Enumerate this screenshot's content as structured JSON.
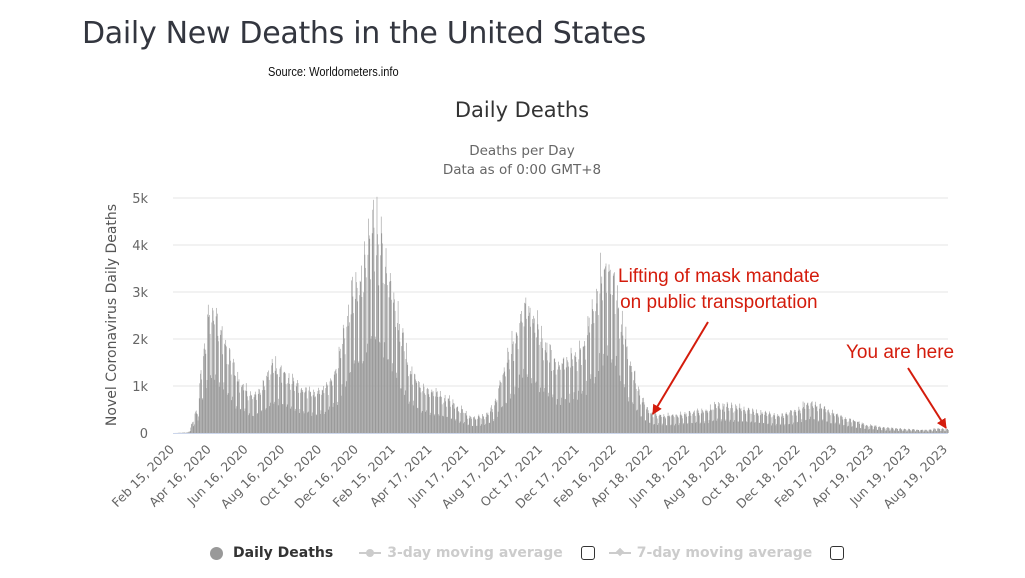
{
  "page": {
    "title": "Daily New Deaths in the United States",
    "source": "Source: Worldometers.info"
  },
  "chart_data": {
    "type": "bar",
    "title": "Daily Deaths",
    "subtitle_lines": [
      "Deaths per Day",
      "Data as of 0:00 GMT+8"
    ],
    "xlabel": "",
    "ylabel": "Novel Coronavirus Daily Deaths",
    "ylim": [
      0,
      5000
    ],
    "y_ticks": [
      0,
      1000,
      2000,
      3000,
      4000,
      5000
    ],
    "y_tick_labels": [
      "0",
      "1k",
      "2k",
      "3k",
      "4k",
      "5k"
    ],
    "grid": true,
    "x_range": [
      "2020-02-15",
      "2023-08-24"
    ],
    "x_tick_labels": [
      "Feb 15, 2020",
      "Apr 16, 2020",
      "Jun 16, 2020",
      "Aug 16, 2020",
      "Oct 16, 2020",
      "Dec 16, 2020",
      "Feb 15, 2021",
      "Apr 17, 2021",
      "Jun 17, 2021",
      "Aug 17, 2021",
      "Oct 17, 2021",
      "Dec 17, 2021",
      "Feb 16, 2022",
      "Apr 18, 2022",
      "Jun 18, 2022",
      "Aug 18, 2022",
      "Oct 18, 2022",
      "Dec 18, 2022",
      "Feb 17, 2023",
      "Apr 19, 2023",
      "Jun 19, 2023",
      "Aug 19, 2023"
    ],
    "series": [
      {
        "name": "Daily Deaths",
        "color": "#999999",
        "granularity": "daily (values approximated from envelope, with weekly reporting cycle)",
        "envelope_points": [
          {
            "date": "2020-02-15",
            "deaths": 0
          },
          {
            "date": "2020-03-10",
            "deaths": 10
          },
          {
            "date": "2020-03-25",
            "deaths": 400
          },
          {
            "date": "2020-04-05",
            "deaths": 1500
          },
          {
            "date": "2020-04-15",
            "deaths": 2400
          },
          {
            "date": "2020-04-22",
            "deaths": 2300
          },
          {
            "date": "2020-05-05",
            "deaths": 1900
          },
          {
            "date": "2020-05-20",
            "deaths": 1400
          },
          {
            "date": "2020-06-05",
            "deaths": 950
          },
          {
            "date": "2020-06-25",
            "deaths": 700
          },
          {
            "date": "2020-07-10",
            "deaths": 850
          },
          {
            "date": "2020-07-28",
            "deaths": 1300
          },
          {
            "date": "2020-08-10",
            "deaths": 1200
          },
          {
            "date": "2020-08-25",
            "deaths": 1050
          },
          {
            "date": "2020-09-15",
            "deaths": 850
          },
          {
            "date": "2020-10-05",
            "deaths": 750
          },
          {
            "date": "2020-10-25",
            "deaths": 850
          },
          {
            "date": "2020-11-10",
            "deaths": 1200
          },
          {
            "date": "2020-11-25",
            "deaths": 1900
          },
          {
            "date": "2020-12-10",
            "deaths": 2700
          },
          {
            "date": "2020-12-28",
            "deaths": 3100
          },
          {
            "date": "2021-01-13",
            "deaths": 4000
          },
          {
            "date": "2021-01-25",
            "deaths": 3500
          },
          {
            "date": "2021-02-10",
            "deaths": 2900
          },
          {
            "date": "2021-02-28",
            "deaths": 1900
          },
          {
            "date": "2021-03-15",
            "deaths": 1200
          },
          {
            "date": "2021-04-05",
            "deaths": 850
          },
          {
            "date": "2021-04-25",
            "deaths": 750
          },
          {
            "date": "2021-05-15",
            "deaths": 650
          },
          {
            "date": "2021-06-05",
            "deaths": 450
          },
          {
            "date": "2021-06-25",
            "deaths": 300
          },
          {
            "date": "2021-07-15",
            "deaths": 320
          },
          {
            "date": "2021-07-30",
            "deaths": 500
          },
          {
            "date": "2021-08-15",
            "deaths": 1100
          },
          {
            "date": "2021-09-01",
            "deaths": 1700
          },
          {
            "date": "2021-09-20",
            "deaths": 2400
          },
          {
            "date": "2021-10-05",
            "deaths": 2100
          },
          {
            "date": "2021-10-25",
            "deaths": 1600
          },
          {
            "date": "2021-11-15",
            "deaths": 1300
          },
          {
            "date": "2021-12-05",
            "deaths": 1400
          },
          {
            "date": "2021-12-25",
            "deaths": 1600
          },
          {
            "date": "2022-01-10",
            "deaths": 2200
          },
          {
            "date": "2022-01-25",
            "deaths": 3000
          },
          {
            "date": "2022-02-03",
            "deaths": 3300
          },
          {
            "date": "2022-02-15",
            "deaths": 2900
          },
          {
            "date": "2022-03-01",
            "deaths": 2100
          },
          {
            "date": "2022-03-15",
            "deaths": 1300
          },
          {
            "date": "2022-04-01",
            "deaths": 700
          },
          {
            "date": "2022-04-18",
            "deaths": 380
          },
          {
            "date": "2022-05-10",
            "deaths": 330
          },
          {
            "date": "2022-06-05",
            "deaths": 350
          },
          {
            "date": "2022-07-10",
            "deaths": 430
          },
          {
            "date": "2022-08-10",
            "deaths": 520
          },
          {
            "date": "2022-09-10",
            "deaths": 480
          },
          {
            "date": "2022-10-15",
            "deaths": 400
          },
          {
            "date": "2022-11-15",
            "deaths": 330
          },
          {
            "date": "2022-12-10",
            "deaths": 400
          },
          {
            "date": "2023-01-05",
            "deaths": 580
          },
          {
            "date": "2023-01-25",
            "deaths": 500
          },
          {
            "date": "2023-02-15",
            "deaths": 380
          },
          {
            "date": "2023-03-15",
            "deaths": 250
          },
          {
            "date": "2023-04-15",
            "deaths": 150
          },
          {
            "date": "2023-05-15",
            "deaths": 100
          },
          {
            "date": "2023-06-19",
            "deaths": 70
          },
          {
            "date": "2023-07-20",
            "deaths": 60
          },
          {
            "date": "2023-08-10",
            "deaths": 90
          },
          {
            "date": "2023-08-24",
            "deaths": 70
          }
        ]
      }
    ],
    "legend": {
      "placement": "bottom",
      "items": [
        {
          "label": "Daily Deaths",
          "active": true,
          "marker": "circle"
        },
        {
          "label": "3-day moving average",
          "active": false,
          "marker": "circle-line",
          "checkbox": false
        },
        {
          "label": "7-day moving average",
          "active": false,
          "marker": "diamond-line",
          "checkbox": false
        }
      ]
    },
    "annotations": [
      {
        "text_lines": [
          "Lifting of mask mandate",
          "on public transportation"
        ],
        "target_date": "2022-04-18",
        "color": "#d41c0c"
      },
      {
        "text_lines": [
          "You are here"
        ],
        "target_date": "2023-08-24",
        "color": "#d41c0c"
      }
    ]
  }
}
